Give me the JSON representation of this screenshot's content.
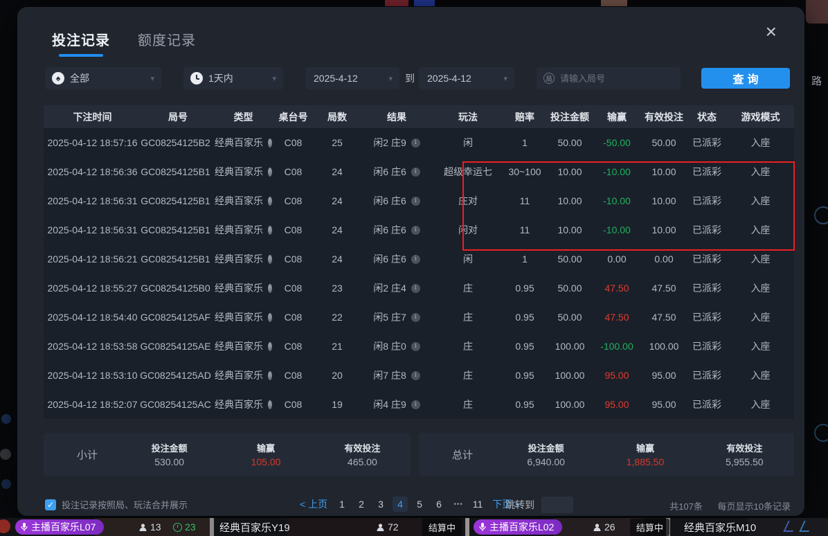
{
  "modal": {
    "tabs": [
      {
        "label": "投注记录",
        "active": true
      },
      {
        "label": "额度记录",
        "active": false
      }
    ],
    "close_glyph": "×",
    "filters": {
      "game_type": "全部",
      "spade_glyph": "♠",
      "time_range": "1天内",
      "date_from": "2025-4-12",
      "to_label": "到",
      "date_to": "2025-4-12",
      "round_icon_text": "局",
      "round_input_placeholder": "请输入局号",
      "search_button": "查询"
    },
    "table": {
      "headers": [
        "下注时间",
        "局号",
        "类型",
        "桌台号",
        "局数",
        "结果",
        "玩法",
        "赔率",
        "投注金额",
        "输赢",
        "有效投注",
        "状态",
        "游戏模式"
      ],
      "info_glyph": "i",
      "rows": [
        {
          "time": "2025-04-12 18:57:16",
          "round_id": "GC08254125B2",
          "type": "经典百家乐",
          "table_no": "C08",
          "round": "25",
          "result": "闲2 庄9",
          "play": "闲",
          "odds": "1",
          "bet": "50.00",
          "winloss": "-50.00",
          "wl": "green",
          "valid": "50.00",
          "status": "已派彩",
          "mode": "入座"
        },
        {
          "time": "2025-04-12 18:56:36",
          "round_id": "GC08254125B1",
          "type": "经典百家乐",
          "table_no": "C08",
          "round": "24",
          "result": "闲6 庄6",
          "play": "超级幸运七",
          "odds": "30~100",
          "bet": "10.00",
          "winloss": "-10.00",
          "wl": "green",
          "valid": "10.00",
          "status": "已派彩",
          "mode": "入座"
        },
        {
          "time": "2025-04-12 18:56:31",
          "round_id": "GC08254125B1",
          "type": "经典百家乐",
          "table_no": "C08",
          "round": "24",
          "result": "闲6 庄6",
          "play": "庄对",
          "odds": "11",
          "bet": "10.00",
          "winloss": "-10.00",
          "wl": "green",
          "valid": "10.00",
          "status": "已派彩",
          "mode": "入座"
        },
        {
          "time": "2025-04-12 18:56:31",
          "round_id": "GC08254125B1",
          "type": "经典百家乐",
          "table_no": "C08",
          "round": "24",
          "result": "闲6 庄6",
          "play": "闲对",
          "odds": "11",
          "bet": "10.00",
          "winloss": "-10.00",
          "wl": "green",
          "valid": "10.00",
          "status": "已派彩",
          "mode": "入座"
        },
        {
          "time": "2025-04-12 18:56:21",
          "round_id": "GC08254125B1",
          "type": "经典百家乐",
          "table_no": "C08",
          "round": "24",
          "result": "闲6 庄6",
          "play": "闲",
          "odds": "1",
          "bet": "50.00",
          "winloss": "0.00",
          "wl": "neutral",
          "valid": "0.00",
          "status": "已派彩",
          "mode": "入座"
        },
        {
          "time": "2025-04-12 18:55:27",
          "round_id": "GC08254125B0",
          "type": "经典百家乐",
          "table_no": "C08",
          "round": "23",
          "result": "闲2 庄4",
          "play": "庄",
          "odds": "0.95",
          "bet": "50.00",
          "winloss": "47.50",
          "wl": "red",
          "valid": "47.50",
          "status": "已派彩",
          "mode": "入座"
        },
        {
          "time": "2025-04-12 18:54:40",
          "round_id": "GC08254125AF",
          "type": "经典百家乐",
          "table_no": "C08",
          "round": "22",
          "result": "闲5 庄7",
          "play": "庄",
          "odds": "0.95",
          "bet": "50.00",
          "winloss": "47.50",
          "wl": "red",
          "valid": "47.50",
          "status": "已派彩",
          "mode": "入座"
        },
        {
          "time": "2025-04-12 18:53:58",
          "round_id": "GC08254125AE",
          "type": "经典百家乐",
          "table_no": "C08",
          "round": "21",
          "result": "闲8 庄0",
          "play": "庄",
          "odds": "0.95",
          "bet": "100.00",
          "winloss": "-100.00",
          "wl": "green",
          "valid": "100.00",
          "status": "已派彩",
          "mode": "入座"
        },
        {
          "time": "2025-04-12 18:53:10",
          "round_id": "GC08254125AD",
          "type": "经典百家乐",
          "table_no": "C08",
          "round": "20",
          "result": "闲7 庄8",
          "play": "庄",
          "odds": "0.95",
          "bet": "100.00",
          "winloss": "95.00",
          "wl": "red",
          "valid": "95.00",
          "status": "已派彩",
          "mode": "入座"
        },
        {
          "time": "2025-04-12 18:52:07",
          "round_id": "GC08254125AC",
          "type": "经典百家乐",
          "table_no": "C08",
          "round": "19",
          "result": "闲4 庄9",
          "play": "庄",
          "odds": "0.95",
          "bet": "100.00",
          "winloss": "95.00",
          "wl": "red",
          "valid": "95.00",
          "status": "已派彩",
          "mode": "入座"
        }
      ]
    },
    "subtotal": {
      "label": "小计",
      "bet_label": "投注金额",
      "bet": "530.00",
      "winloss_label": "输赢",
      "winloss": "105.00",
      "valid_label": "有效投注",
      "valid": "465.00"
    },
    "total": {
      "label": "总计",
      "bet_label": "投注金额",
      "bet": "6,940.00",
      "winloss_label": "输赢",
      "winloss": "1,885.50",
      "valid_label": "有效投注",
      "valid": "5,955.50"
    },
    "footer": {
      "merge_checkbox_checked": true,
      "check_glyph": "✓",
      "merge_label": "投注记录按照局、玩法合并展示",
      "prev": "< 上页",
      "pages": [
        "1",
        "2",
        "3",
        "4",
        "5",
        "6",
        "•••",
        "11"
      ],
      "active_page": "4",
      "next": "下页 >",
      "jump_label": "跳转到",
      "jump_value": "",
      "total_count": "共107条",
      "per_page": "每页显示10条记录"
    }
  },
  "background": {
    "right_edge_text": "路",
    "bottom_strip": [
      {
        "kind": "pill",
        "label": "主播百家乐L07"
      },
      {
        "kind": "viewer",
        "value": "13"
      },
      {
        "kind": "timer",
        "value": "23"
      },
      {
        "kind": "title",
        "label": "经典百家乐Y19"
      },
      {
        "kind": "viewer",
        "value": "72"
      },
      {
        "kind": "status",
        "label": "结算中"
      },
      {
        "kind": "pill",
        "label": "主播百家乐L02"
      },
      {
        "kind": "viewer",
        "value": "26"
      },
      {
        "kind": "status",
        "label": "结算中"
      },
      {
        "kind": "title",
        "label": "经典百家乐M10"
      }
    ]
  },
  "colors": {
    "accent_blue": "#2490ee",
    "win_red": "#e23b31",
    "loss_green": "#1db35f",
    "annotation_red": "#ed1f24"
  }
}
